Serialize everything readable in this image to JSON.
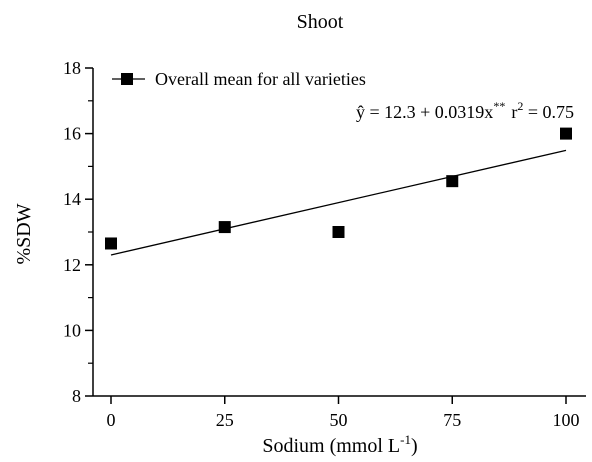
{
  "chart_data": {
    "type": "scatter",
    "title": "Shoot",
    "xlabel": "Sodium (mmol L",
    "xlabel_sup": "-1",
    "xlabel_close": ")",
    "ylabel": "%SDW",
    "x_ticks": [
      "0",
      "25",
      "50",
      "75",
      "100"
    ],
    "y_ticks": [
      "8",
      "10",
      "12",
      "14",
      "16",
      "18"
    ],
    "xlim": [
      -5,
      105
    ],
    "ylim": [
      8,
      18
    ],
    "grid": false,
    "legend_position": "top-left",
    "series": [
      {
        "name": "Overall mean for all varieties",
        "marker": "square",
        "color": "#000000",
        "x": [
          0,
          25,
          50,
          75,
          100
        ],
        "y": [
          12.65,
          13.15,
          13.0,
          14.55,
          16.0
        ]
      }
    ],
    "trendline": {
      "intercept": 12.3,
      "slope": 0.0319,
      "x_range": [
        0,
        100
      ]
    },
    "equation": {
      "yhat": "ŷ",
      "rhs": " = 12.3 + 0.0319x",
      "sig": "**",
      "r": "r",
      "r_exp": "2",
      "r_val": " = 0.75"
    }
  }
}
